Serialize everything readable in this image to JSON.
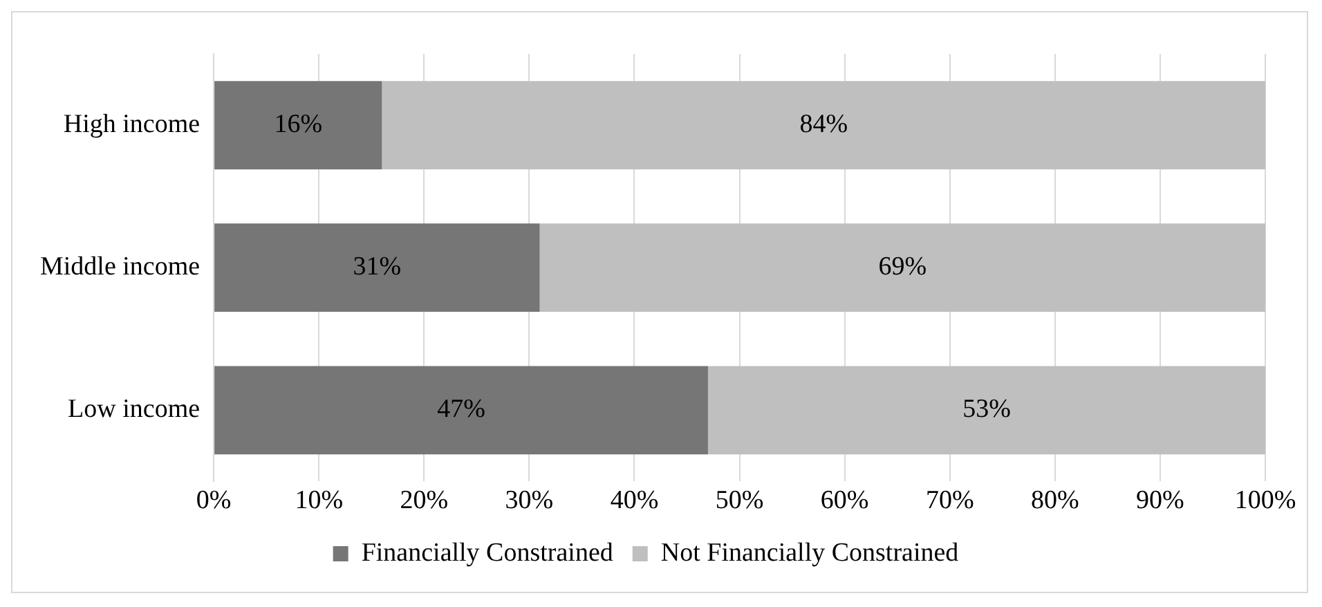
{
  "chart_data": {
    "type": "bar",
    "orientation": "horizontal",
    "stacked": true,
    "categories": [
      "High income",
      "Middle income",
      "Low income"
    ],
    "series": [
      {
        "name": "Financially Constrained",
        "color": "#767676",
        "values": [
          16,
          31,
          47
        ],
        "value_labels": [
          "16%",
          "31%",
          "47%"
        ]
      },
      {
        "name": "Not Financially Constrained",
        "color": "#bfbfbf",
        "values": [
          84,
          69,
          53
        ],
        "value_labels": [
          "84%",
          "69%",
          "53%"
        ]
      }
    ],
    "xlim": [
      0,
      100
    ],
    "xticks": [
      {
        "value": 0,
        "label": "0%"
      },
      {
        "value": 10,
        "label": "10%"
      },
      {
        "value": 20,
        "label": "20%"
      },
      {
        "value": 30,
        "label": "30%"
      },
      {
        "value": 40,
        "label": "40%"
      },
      {
        "value": 50,
        "label": "50%"
      },
      {
        "value": 60,
        "label": "60%"
      },
      {
        "value": 70,
        "label": "70%"
      },
      {
        "value": 80,
        "label": "80%"
      },
      {
        "value": 90,
        "label": "90%"
      },
      {
        "value": 100,
        "label": "100%"
      }
    ],
    "grid": "x",
    "legend": "bottom"
  }
}
